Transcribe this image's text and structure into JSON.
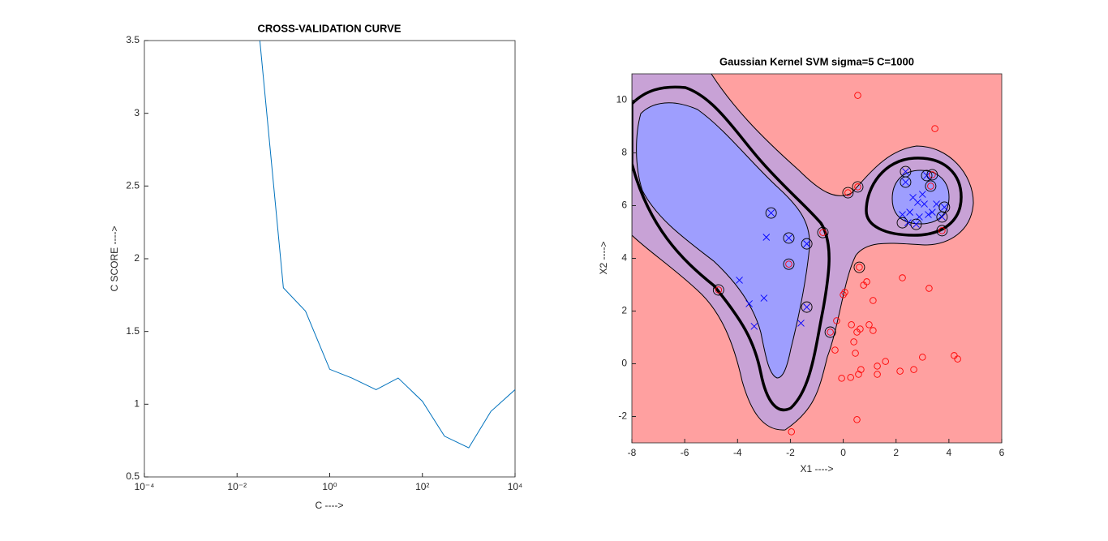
{
  "chart_data": [
    {
      "type": "line",
      "title": "CROSS-VALIDATION CURVE",
      "xlabel": "C ---->",
      "ylabel": "C SCORE ---->",
      "xscale": "log",
      "xlim": [
        0.0001,
        10000
      ],
      "xticks": [
        {
          "value": 0.0001,
          "label": "10⁻⁴"
        },
        {
          "value": 0.01,
          "label": "10⁻²"
        },
        {
          "value": 1,
          "label": "10⁰"
        },
        {
          "value": 100,
          "label": "10²"
        },
        {
          "value": 10000,
          "label": "10⁴"
        }
      ],
      "ylim": [
        0.5,
        3.5
      ],
      "yticks": [
        0.5,
        1,
        1.5,
        2,
        2.5,
        3,
        3.5
      ],
      "series": [
        {
          "color": "#0072bd",
          "x": [
            0.03,
            0.1,
            0.3,
            1,
            3,
            10,
            30,
            100,
            300,
            1000,
            3000,
            10000
          ],
          "values": [
            3.55,
            1.8,
            1.64,
            1.24,
            1.18,
            1.1,
            1.18,
            1.02,
            0.78,
            0.7,
            0.95,
            1.1
          ]
        }
      ]
    },
    {
      "type": "scatter",
      "title": "Gaussian Kernel SVM sigma=5 C=1000",
      "xlabel": "X1 ---->",
      "ylabel": "X2 ---->",
      "xlim": [
        -8,
        6
      ],
      "xticks": [
        -8,
        -6,
        -4,
        -2,
        0,
        2,
        4,
        6
      ],
      "ylim": [
        -3,
        11
      ],
      "yticks": [
        -2,
        0,
        2,
        4,
        6,
        8,
        10
      ],
      "series": [
        {
          "marker": "x",
          "color": "#0000ff",
          "x": [
            -2.73,
            -2.91,
            -2.06,
            -1.38,
            -3.93,
            -3.0,
            -3.56,
            -3.37,
            -1.6,
            -1.38,
            2.36,
            2.36,
            3.16,
            2.64,
            2.82,
            3.07,
            2.24,
            2.52,
            2.88,
            3.37,
            3.53,
            3.74,
            3.83,
            2.45,
            2.76,
            3.22,
            3.0
          ],
          "values": [
            5.72,
            4.8,
            4.77,
            4.55,
            3.17,
            2.49,
            2.28,
            1.42,
            1.54,
            2.15,
            6.89,
            7.29,
            7.14,
            6.31,
            6.12,
            6.06,
            5.66,
            5.75,
            5.57,
            5.75,
            6.06,
            5.57,
            5.94,
            5.35,
            5.29,
            5.66,
            6.43
          ]
        },
        {
          "marker": "o",
          "color": "#ff0000",
          "x": [
            -4.72,
            -2.06,
            -0.77,
            0.18,
            0.55,
            0.61,
            -0.49,
            3.31,
            3.37,
            3.74,
            0.55,
            3.47,
            2.24,
            3.25,
            0.89,
            0.77,
            0.06,
            0,
            1.13,
            -0.25,
            0.31,
            0.98,
            1.13,
            0.64,
            0.52,
            0.4,
            -0.31,
            0.46,
            0.67,
            0.58,
            0.28,
            -0.06,
            1.29,
            1.29,
            1.6,
            2.15,
            2.67,
            3.0,
            4.2,
            4.33,
            0.52,
            -1.96
          ],
          "values": [
            2.8,
            3.78,
            4.98,
            6.49,
            6.71,
            3.66,
            1.2,
            6.74,
            7.17,
            5.05,
            10.18,
            8.92,
            3.26,
            2.86,
            3.11,
            2.98,
            2.71,
            2.62,
            2.4,
            1.63,
            1.48,
            1.48,
            1.26,
            1.32,
            1.2,
            0.83,
            0.52,
            0.4,
            -0.22,
            -0.4,
            -0.52,
            -0.55,
            -0.09,
            -0.4,
            0.09,
            -0.28,
            -0.22,
            0.25,
            0.31,
            0.18,
            -2.12,
            -2.58
          ]
        },
        {
          "marker": "O",
          "color": "#000000",
          "x": [
            -4.72,
            -2.06,
            -0.77,
            0.18,
            0.55,
            0.61,
            -0.49,
            -2.73,
            -2.06,
            -1.38,
            -1.38,
            2.36,
            2.36,
            3.16,
            3.31,
            3.37,
            3.74,
            2.24,
            2.76,
            3.74,
            3.83
          ],
          "values": [
            2.8,
            3.78,
            4.98,
            6.49,
            6.71,
            3.66,
            1.2,
            5.72,
            4.77,
            4.55,
            2.15,
            6.89,
            7.29,
            7.14,
            6.74,
            7.17,
            5.05,
            5.35,
            5.29,
            5.57,
            5.94
          ]
        }
      ]
    }
  ]
}
